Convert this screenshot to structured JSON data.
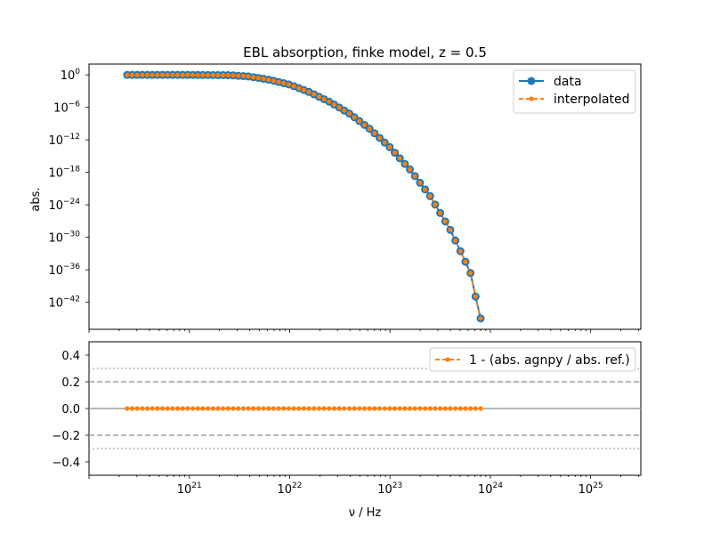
{
  "chart_data": [
    {
      "type": "line",
      "title": "EBL absorption, finke model, z = 0.5",
      "xlabel": "",
      "ylabel": "abs.",
      "xscale": "log",
      "yscale": "log",
      "xlim": [
        1e+20,
        3.16e+25
      ],
      "ylim": [
        1e-47,
        100.0
      ],
      "xticks": [
        {
          "exp": "21",
          "value": 1e+21
        },
        {
          "exp": "22",
          "value": 1e+22
        },
        {
          "exp": "23",
          "value": 1e+23
        },
        {
          "exp": "24",
          "value": 1e+24
        },
        {
          "exp": "25",
          "value": 1e+25
        }
      ],
      "yticks": [
        {
          "exp": "0",
          "value": 1
        },
        {
          "exp": "−6",
          "value": 1e-06
        },
        {
          "exp": "−12",
          "value": 1e-12
        },
        {
          "exp": "−18",
          "value": 1e-18
        },
        {
          "exp": "−24",
          "value": 1e-24
        },
        {
          "exp": "−30",
          "value": 1e-30
        },
        {
          "exp": "−36",
          "value": 1e-36
        },
        {
          "exp": "−42",
          "value": 1e-42
        }
      ],
      "legend": {
        "position": "top-right",
        "labels": [
          "data",
          "interpolated"
        ]
      },
      "colors": {
        "data": "#1f77b4",
        "interpolated": "#ff7f0e"
      },
      "points": {
        "x_min": 2.4e+20,
        "x_max": 8e+23,
        "count": 71,
        "log10_y_knots": [
          [
            20.38,
            0
          ],
          [
            21.0,
            0
          ],
          [
            21.4,
            -0.05
          ],
          [
            21.6,
            -0.3
          ],
          [
            21.8,
            -0.9
          ],
          [
            22.0,
            -1.8
          ],
          [
            22.2,
            -3.2
          ],
          [
            22.4,
            -5.0
          ],
          [
            22.6,
            -7.2
          ],
          [
            22.8,
            -10.0
          ],
          [
            23.0,
            -13.4
          ],
          [
            23.2,
            -17.5
          ],
          [
            23.4,
            -22.4
          ],
          [
            23.6,
            -28.6
          ],
          [
            23.8,
            -36.4
          ],
          [
            23.9,
            -45.0
          ]
        ]
      },
      "grid": false
    },
    {
      "type": "line",
      "xlabel": "ν / Hz",
      "ylabel": "",
      "xscale": "log",
      "xlim": [
        1e+20,
        3.16e+25
      ],
      "ylim": [
        -0.5,
        0.5
      ],
      "yticks": [
        "0.4",
        "0.2",
        "0.0",
        "−0.2",
        "−0.4"
      ],
      "reference_lines": {
        "dashed": [
          0.2,
          -0.2
        ],
        "dotted": [
          0.3,
          -0.3
        ],
        "solid": [
          0
        ]
      },
      "legend": {
        "position": "top-right",
        "labels": [
          "1 - (abs. agnpy / abs. ref.)"
        ]
      },
      "series": [
        {
          "name": "1 - (abs. agnpy / abs. ref.)",
          "value": 0.0,
          "x_min": 2.4e+20,
          "x_max": 8e+23,
          "count": 71
        }
      ]
    }
  ]
}
